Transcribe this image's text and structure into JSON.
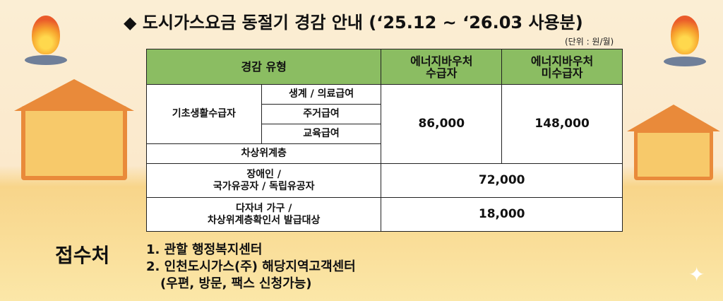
{
  "title": "◆ 도시가스요금 동절기 경감 안내 (‘25.12 ~ ‘26.03 사용분)",
  "unit": "(단위 : 원/월)",
  "table": {
    "headers": [
      "경감 유형",
      "에너지바우처\n수급자",
      "에너지바우처\n미수급자"
    ],
    "basic_group": "기초생활수급자",
    "basic_subtypes": [
      "생계 / 의료급여",
      "주거급여",
      "교육급여"
    ],
    "near_poverty": "차상위계층",
    "voucher_recipient_amount": "86,000",
    "voucher_nonrecipient_amount": "148,000",
    "disabled_label": [
      "장애인 /",
      "국가유공자 / 독립유공자"
    ],
    "disabled_amount": "72,000",
    "multichild_label": [
      "다자녀 가구 /",
      "차상위계층확인서 발급대상"
    ],
    "multichild_amount": "18,000"
  },
  "reception": {
    "label": "접수처",
    "items": [
      "1. 관할 행정복지센터",
      "2. 인천도시가스(주) 해당지역고객센터",
      "(우편, 방문, 팩스 신청가능)"
    ]
  },
  "colors": {
    "header": "#8bbd62",
    "house": "#f2a64a"
  }
}
